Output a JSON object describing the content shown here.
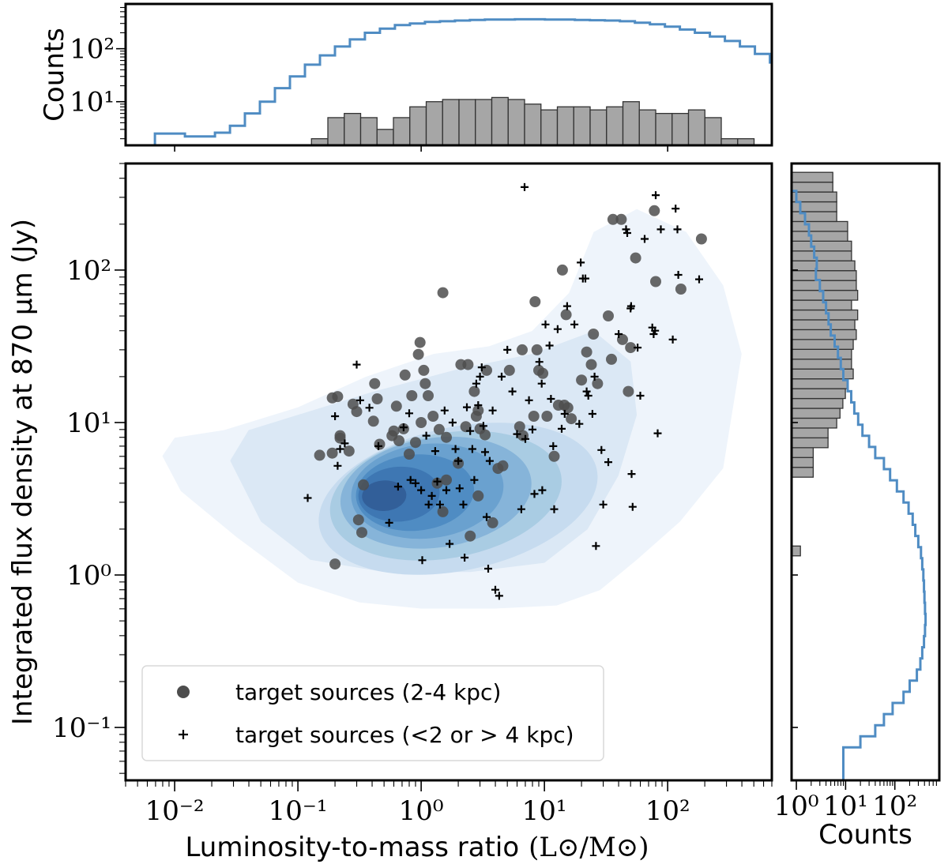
{
  "chart_data": [
    {
      "id": "main",
      "type": "scatter",
      "xlabel": "Luminosity-to-mass ratio",
      "xlabel_unit": "(L⊙/M⊙)",
      "ylabel": "Integrated flux density at 870 μm (Jy)",
      "xscale": "log",
      "yscale": "log",
      "xlim": [
        0.004,
        700
      ],
      "ylim": [
        0.045,
        500
      ],
      "xtick_labels": [
        "10⁻²",
        "10⁻¹",
        "10⁰",
        "10¹",
        "10²"
      ],
      "ytick_labels": [
        "10⁻¹",
        "10⁰",
        "10¹",
        "10²"
      ],
      "colors": {
        "contour": [
          "#eef4fb",
          "#dbe8f5",
          "#c6dbef",
          "#a9cce3",
          "#86b4d9",
          "#6aa1cf",
          "#4f8cc3",
          "#3e77b3",
          "#325f99"
        ],
        "dot": "#4d4d4d",
        "plus": "#000000"
      },
      "legend": {
        "placement": "lower-left",
        "entries": [
          "target sources (2-4 kpc)",
          "target sources (<2 or > 4 kpc)"
        ]
      },
      "series": [
        {
          "name": "target sources (2-4 kpc)",
          "marker": "circle",
          "points": [
            [
              0.15,
              6.1
            ],
            [
              0.19,
              14.5
            ],
            [
              0.21,
              14.8
            ],
            [
              0.22,
              8.2
            ],
            [
              0.22,
              7.9
            ],
            [
              0.19,
              6.3
            ],
            [
              0.2,
              1.18
            ],
            [
              0.28,
              13.2
            ],
            [
              0.3,
              11.8
            ],
            [
              0.26,
              6.5
            ],
            [
              0.34,
              3.9
            ],
            [
              0.31,
              2.3
            ],
            [
              0.33,
              1.9
            ],
            [
              0.42,
              18.0
            ],
            [
              0.44,
              14.3
            ],
            [
              0.41,
              10.2
            ],
            [
              0.46,
              7.2
            ],
            [
              0.6,
              8.8
            ],
            [
              0.66,
              7.6
            ],
            [
              0.72,
              9.1
            ],
            [
              0.74,
              20.5
            ],
            [
              0.63,
              12.8
            ],
            [
              0.58,
              8.2
            ],
            [
              0.84,
              15.0
            ],
            [
              0.9,
              7.4
            ],
            [
              0.8,
              6.2
            ],
            [
              0.98,
              33.5
            ],
            [
              0.95,
              28.0
            ],
            [
              1.05,
              22.0
            ],
            [
              1.08,
              18.0
            ],
            [
              1.14,
              15.0
            ],
            [
              1.0,
              10.0
            ],
            [
              1.25,
              11.0
            ],
            [
              1.4,
              9.0
            ],
            [
              1.6,
              8.0
            ],
            [
              1.5,
              71.0
            ],
            [
              1.35,
              4.0
            ],
            [
              1.6,
              4.2
            ],
            [
              1.5,
              2.6
            ],
            [
              2.1,
              24.0
            ],
            [
              2.4,
              24.0
            ],
            [
              2.7,
              16.0
            ],
            [
              2.8,
              11.0
            ],
            [
              2.3,
              9.4
            ],
            [
              2.0,
              5.4
            ],
            [
              2.5,
              1.8
            ],
            [
              2.9,
              12.0
            ],
            [
              3.4,
              22.0
            ],
            [
              3.0,
              9.1
            ],
            [
              3.3,
              8.3
            ],
            [
              2.9,
              3.3
            ],
            [
              3.8,
              2.2
            ],
            [
              4.2,
              5.0
            ],
            [
              4.6,
              5.2
            ],
            [
              5.2,
              22.0
            ],
            [
              6.6,
              30.0
            ],
            [
              6.3,
              9.4
            ],
            [
              6.7,
              8.2
            ],
            [
              8.4,
              62.0
            ],
            [
              8.7,
              30.0
            ],
            [
              9.0,
              22.0
            ],
            [
              8.2,
              11.0
            ],
            [
              9.7,
              21.0
            ],
            [
              10.5,
              11.0
            ],
            [
              12.0,
              6.0
            ],
            [
              13.0,
              13.0
            ],
            [
              14.0,
              100.0
            ],
            [
              15.0,
              51.0
            ],
            [
              14.5,
              13.0
            ],
            [
              15.5,
              12.5
            ],
            [
              16.5,
              10.6
            ],
            [
              22.0,
              29.0
            ],
            [
              24.0,
              24.0
            ],
            [
              20.0,
              19.0
            ],
            [
              25.0,
              38.0
            ],
            [
              33.0,
              50.0
            ],
            [
              36.0,
              215.0
            ],
            [
              42.0,
              215.0
            ],
            [
              35.0,
              26.0
            ],
            [
              27.0,
              18.0
            ],
            [
              43.0,
              35.0
            ],
            [
              50.0,
              31.0
            ],
            [
              48.0,
              16.0
            ],
            [
              55.0,
              120.0
            ],
            [
              78.0,
              245.0
            ],
            [
              80.0,
              84.0
            ],
            [
              128.0,
              75.0
            ],
            [
              188.0,
              160.0
            ]
          ]
        },
        {
          "name": "target sources (<2 or > 4 kpc)",
          "marker": "plus",
          "points": [
            [
              0.12,
              3.2
            ],
            [
              0.2,
              11.0
            ],
            [
              0.22,
              6.7
            ],
            [
              0.24,
              7.3
            ],
            [
              0.21,
              5.2
            ],
            [
              0.3,
              24.0
            ],
            [
              0.32,
              14.0
            ],
            [
              0.38,
              12.5
            ],
            [
              0.45,
              7.0
            ],
            [
              0.55,
              2.2
            ],
            [
              0.65,
              3.8
            ],
            [
              0.72,
              9.3
            ],
            [
              0.8,
              11.5
            ],
            [
              0.82,
              4.2
            ],
            [
              0.9,
              4.0
            ],
            [
              1.0,
              3.6
            ],
            [
              1.02,
              1.25
            ],
            [
              1.1,
              8.2
            ],
            [
              1.15,
              2.9
            ],
            [
              1.22,
              3.3
            ],
            [
              1.3,
              6.5
            ],
            [
              1.35,
              4.1
            ],
            [
              1.42,
              2.9
            ],
            [
              1.55,
              12.0
            ],
            [
              1.6,
              3.6
            ],
            [
              1.7,
              1.6
            ],
            [
              1.8,
              10.0
            ],
            [
              1.9,
              6.7
            ],
            [
              2.0,
              5.6
            ],
            [
              2.05,
              3.7
            ],
            [
              2.2,
              2.9
            ],
            [
              2.25,
              1.3
            ],
            [
              2.35,
              12.6
            ],
            [
              2.5,
              8.8
            ],
            [
              2.6,
              6.7
            ],
            [
              2.7,
              4.2
            ],
            [
              2.8,
              18.0
            ],
            [
              2.9,
              13.0
            ],
            [
              3.0,
              20.0
            ],
            [
              3.1,
              23.0
            ],
            [
              3.2,
              9.5
            ],
            [
              3.3,
              6.4
            ],
            [
              3.4,
              2.4
            ],
            [
              3.5,
              1.1
            ],
            [
              3.6,
              5.6
            ],
            [
              3.8,
              12.0
            ],
            [
              4.0,
              0.8
            ],
            [
              4.3,
              0.73
            ],
            [
              4.5,
              20.0
            ],
            [
              5.0,
              30.0
            ],
            [
              5.5,
              16.0
            ],
            [
              6.0,
              8.4
            ],
            [
              6.5,
              2.7
            ],
            [
              6.9,
              350.0
            ],
            [
              7.0,
              7.8
            ],
            [
              7.5,
              14.0
            ],
            [
              8.0,
              9.0
            ],
            [
              8.3,
              3.4
            ],
            [
              9.1,
              25.0
            ],
            [
              9.5,
              18.0
            ],
            [
              9.6,
              3.6
            ],
            [
              10.2,
              44.0
            ],
            [
              11.0,
              32.0
            ],
            [
              11.3,
              14.3
            ],
            [
              11.8,
              7.0
            ],
            [
              12.0,
              2.7
            ],
            [
              12.8,
              41.0
            ],
            [
              13.8,
              9.1
            ],
            [
              14.6,
              11.4
            ],
            [
              15.3,
              58.0
            ],
            [
              17.5,
              44.0
            ],
            [
              19.2,
              9.8
            ],
            [
              19.7,
              112.0
            ],
            [
              20.5,
              88.0
            ],
            [
              21.5,
              88.0
            ],
            [
              22.0,
              16.0
            ],
            [
              22.7,
              15.0
            ],
            [
              24.5,
              11.4
            ],
            [
              25.5,
              20.0
            ],
            [
              26.2,
              1.55
            ],
            [
              29.0,
              6.6
            ],
            [
              30.0,
              2.9
            ],
            [
              33.0,
              5.5
            ],
            [
              40.0,
              38.0
            ],
            [
              46.0,
              185.0
            ],
            [
              47.0,
              175.0
            ],
            [
              50.0,
              56.0
            ],
            [
              50.5,
              58.0
            ],
            [
              51.0,
              4.6
            ],
            [
              52.0,
              2.8
            ],
            [
              57.0,
              31.0
            ],
            [
              60.0,
              15.0
            ],
            [
              65.0,
              160.0
            ],
            [
              75.0,
              42.0
            ],
            [
              77.0,
              38.0
            ],
            [
              79.0,
              40.0
            ],
            [
              80.0,
              310.0
            ],
            [
              83.0,
              8.5
            ],
            [
              88.0,
              185.0
            ],
            [
              110.0,
              35.0
            ],
            [
              116.0,
              253.0
            ],
            [
              120.0,
              185.0
            ],
            [
              122.0,
              93.0
            ],
            [
              180.0,
              87.0
            ]
          ]
        }
      ]
    },
    {
      "id": "top-histogram",
      "type": "histogram",
      "ylabel": "Counts",
      "xscale": "log",
      "yscale": "log",
      "xlim": [
        0.004,
        700
      ],
      "ylim": [
        1.5,
        700
      ],
      "ytick_labels": [
        "10¹",
        "10²"
      ],
      "colors": {
        "bars": "#a6a6a6",
        "step": "#4f8cc3"
      },
      "bin_log_edges": [
        -2.2,
        -1.8
      ],
      "bin_log_width": 0.133,
      "bars_start_log": -0.89,
      "bar_counts": [
        2,
        5,
        6,
        5,
        3,
        5,
        8,
        10,
        11,
        11,
        11,
        12,
        11,
        9,
        7,
        8,
        8,
        7,
        8,
        10,
        7,
        6,
        6,
        7,
        5,
        2,
        2
      ],
      "step_start_log": -2.16,
      "step_counts": [
        2.5,
        2.5,
        2.2,
        2.2,
        2.6,
        3.5,
        6,
        10,
        18,
        30,
        50,
        75,
        110,
        150,
        200,
        240,
        280,
        300,
        320,
        330,
        340,
        350,
        355,
        355,
        360,
        360,
        355,
        355,
        350,
        345,
        340,
        330,
        310,
        290,
        260,
        230,
        200,
        170,
        140,
        110,
        80,
        55,
        35,
        22,
        12,
        7,
        4,
        2.6
      ]
    },
    {
      "id": "right-histogram",
      "type": "histogram",
      "orientation": "horizontal",
      "xlabel": "Counts",
      "xscale": "log",
      "yscale": "log",
      "xlim": [
        0.8,
        800
      ],
      "ylim": [
        0.045,
        500
      ],
      "xtick_labels": [
        "10⁰",
        "10¹",
        "10²"
      ],
      "colors": {
        "bars": "#a6a6a6",
        "step": "#4f8cc3"
      },
      "bars_start_log": -1.1,
      "bin_log_width": 0.0645,
      "bar_counts": [
        0,
        0,
        0,
        0,
        0,
        0,
        0,
        0,
        0,
        0,
        0,
        0,
        0,
        0,
        0,
        0,
        0,
        0,
        0,
        1.1,
        0,
        0,
        0,
        0,
        0,
        0,
        0,
        2,
        2,
        2,
        4,
        4,
        6,
        7,
        8,
        9,
        10,
        13,
        12,
        12,
        13,
        15,
        14,
        16,
        12,
        16,
        15,
        15,
        14,
        12,
        12,
        10,
        10,
        6,
        6,
        6,
        5,
        5,
        0,
        1.1,
        0,
        3,
        0,
        0,
        1.1,
        0,
        0,
        5,
        5,
        4,
        4,
        4,
        0
      ],
      "step_start_log": -1.35,
      "step_counts": [
        9,
        9,
        9,
        20,
        40,
        60,
        90,
        150,
        200,
        280,
        330,
        360,
        390,
        410,
        420,
        410,
        400,
        390,
        380,
        360,
        340,
        300,
        260,
        230,
        190,
        150,
        110,
        80,
        60,
        40,
        30,
        22,
        18,
        15,
        13,
        11,
        9,
        8,
        7,
        6,
        5,
        4.5,
        4,
        3.5,
        3,
        2.5,
        2.6,
        2.3,
        2,
        1.8,
        1.5,
        1.2,
        1.0,
        0
      ]
    }
  ]
}
